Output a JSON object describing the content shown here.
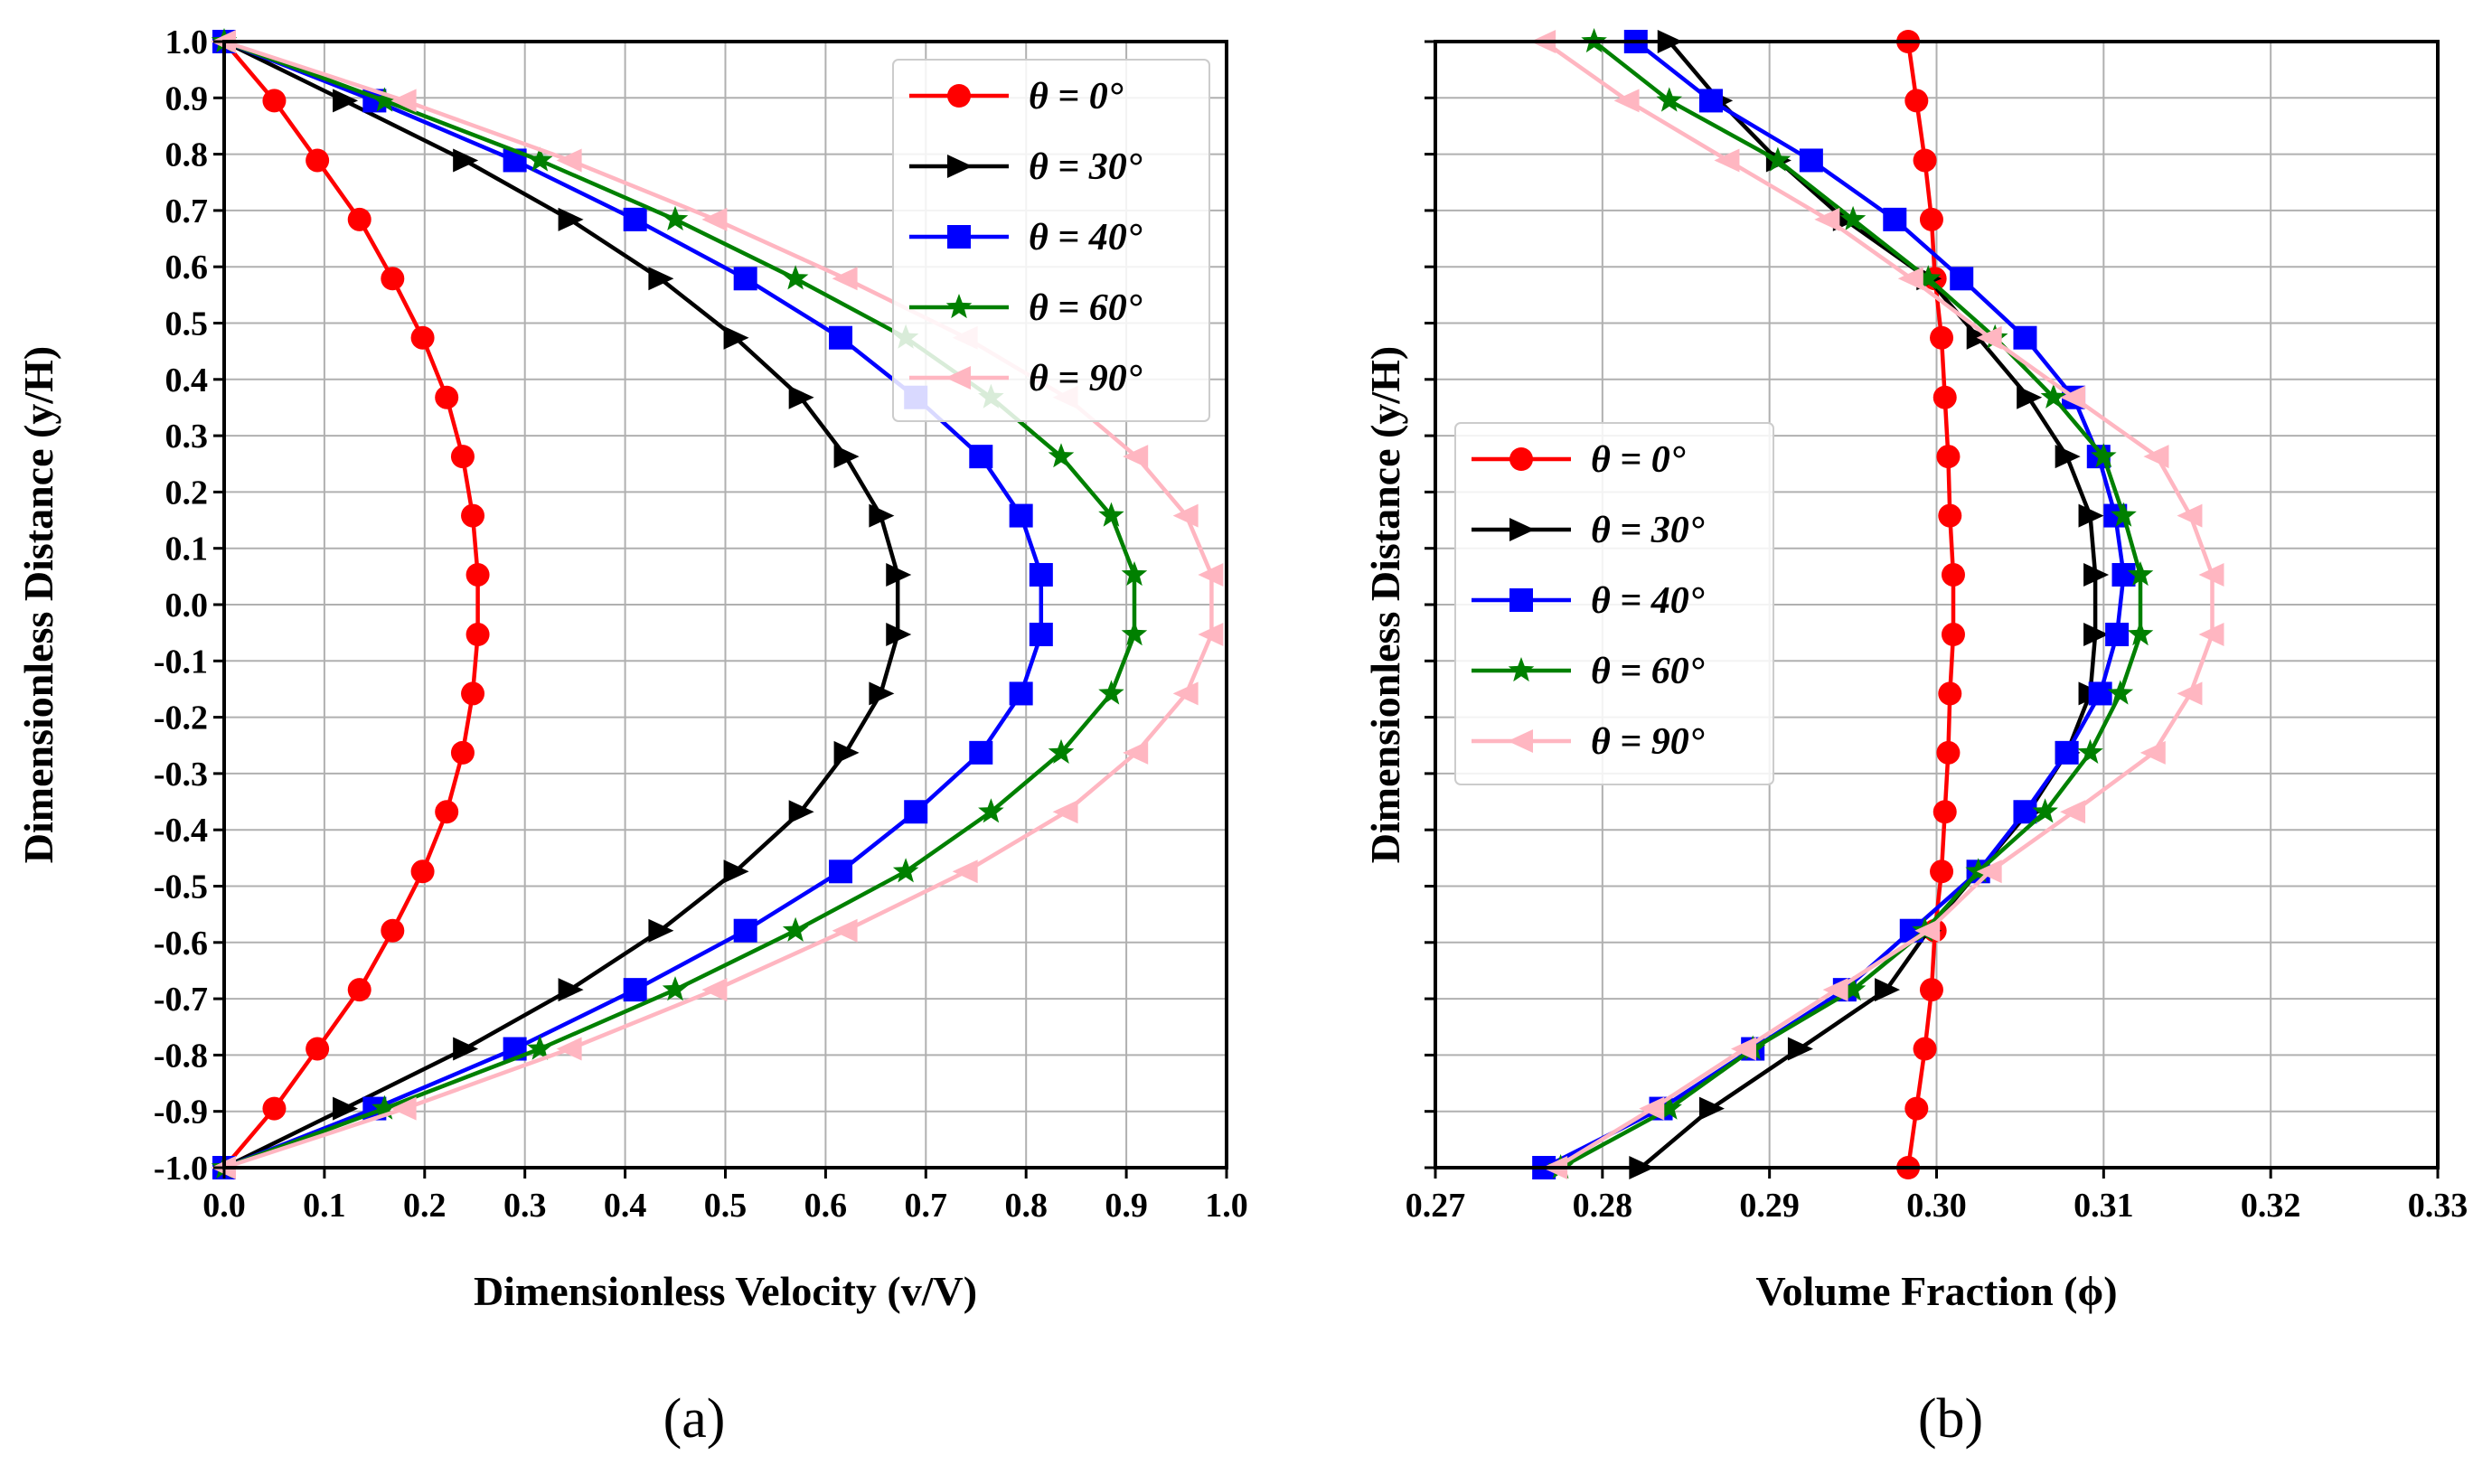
{
  "panels": [
    {
      "label": "(a)",
      "chart_data": {
        "type": "line",
        "title": "",
        "xlabel": "Dimensionless Velocity (v/V)",
        "ylabel": "Dimensionless Distance (y/H)",
        "xlim": [
          0.0,
          1.0
        ],
        "ylim": [
          -1.0,
          1.0
        ],
        "grid": true,
        "legend_position": "top-right",
        "x_ticks": [
          "0.0",
          "0.1",
          "0.2",
          "0.3",
          "0.4",
          "0.5",
          "0.6",
          "0.7",
          "0.8",
          "0.9",
          "1.0"
        ],
        "y_ticks": [
          "-1.0",
          "-0.9",
          "-0.8",
          "-0.7",
          "-0.6",
          "-0.5",
          "-0.4",
          "-0.3",
          "-0.2",
          "-0.1",
          "0.0",
          "0.1",
          "0.2",
          "0.3",
          "0.4",
          "0.5",
          "0.6",
          "0.7",
          "0.8",
          "0.9",
          "1.0"
        ],
        "y_tick_labels_visible": true,
        "y": [
          1.0,
          0.895,
          0.789,
          0.684,
          0.579,
          0.474,
          0.368,
          0.263,
          0.158,
          0.053,
          -0.053,
          -0.158,
          -0.263,
          -0.368,
          -0.474,
          -0.579,
          -0.684,
          -0.789,
          -0.895,
          -1.0
        ],
        "series": [
          {
            "name": "θ = 0°",
            "color": "#ff0000",
            "marker": "circle",
            "values": [
              0.0,
              0.05,
              0.093,
              0.135,
              0.168,
              0.198,
              0.222,
              0.238,
              0.248,
              0.253,
              0.253,
              0.248,
              0.238,
              0.222,
              0.198,
              0.168,
              0.135,
              0.093,
              0.05,
              0.0
            ]
          },
          {
            "name": "θ = 30°",
            "color": "#000000",
            "marker": "triangle-right",
            "values": [
              0.0,
              0.12,
              0.24,
              0.345,
              0.435,
              0.51,
              0.575,
              0.62,
              0.655,
              0.672,
              0.672,
              0.655,
              0.62,
              0.575,
              0.51,
              0.435,
              0.345,
              0.24,
              0.12,
              0.0
            ]
          },
          {
            "name": "θ = 40°",
            "color": "#0000ff",
            "marker": "square",
            "values": [
              0.0,
              0.15,
              0.29,
              0.41,
              0.52,
              0.615,
              0.69,
              0.755,
              0.795,
              0.815,
              0.815,
              0.795,
              0.755,
              0.69,
              0.615,
              0.52,
              0.41,
              0.29,
              0.15,
              0.0
            ]
          },
          {
            "name": "θ = 60°",
            "color": "#008000",
            "marker": "star",
            "values": [
              0.0,
              0.16,
              0.315,
              0.45,
              0.57,
              0.68,
              0.765,
              0.835,
              0.885,
              0.908,
              0.908,
              0.885,
              0.835,
              0.765,
              0.68,
              0.57,
              0.45,
              0.315,
              0.16,
              0.0
            ]
          },
          {
            "name": "θ = 90°",
            "color": "#ffb6c1",
            "marker": "triangle-left",
            "values": [
              0.0,
              0.18,
              0.345,
              0.49,
              0.62,
              0.74,
              0.84,
              0.91,
              0.96,
              0.985,
              0.985,
              0.96,
              0.91,
              0.84,
              0.74,
              0.62,
              0.49,
              0.345,
              0.18,
              0.0
            ]
          }
        ]
      }
    },
    {
      "label": "(b)",
      "chart_data": {
        "type": "line",
        "title": "",
        "xlabel": "Volume Fraction (ϕ)",
        "ylabel": "Dimensionless Distance (y/H)",
        "xlim": [
          0.27,
          0.33
        ],
        "ylim": [
          -1.0,
          1.0
        ],
        "grid": true,
        "legend_position": "center-left",
        "x_ticks": [
          "0.27",
          "0.28",
          "0.29",
          "0.30",
          "0.31",
          "0.32",
          "0.33"
        ],
        "y_ticks": [],
        "y_tick_labels_visible": false,
        "y": [
          1.0,
          0.895,
          0.789,
          0.684,
          0.579,
          0.474,
          0.368,
          0.263,
          0.158,
          0.053,
          -0.053,
          -0.158,
          -0.263,
          -0.368,
          -0.474,
          -0.579,
          -0.684,
          -0.789,
          -0.895,
          -1.0
        ],
        "series": [
          {
            "name": "θ = 0°",
            "color": "#ff0000",
            "marker": "circle",
            "values": [
              0.2983,
              0.2988,
              0.2993,
              0.2997,
              0.2999,
              0.3003,
              0.3005,
              0.3007,
              0.3008,
              0.301,
              0.301,
              0.3008,
              0.3007,
              0.3005,
              0.3003,
              0.2999,
              0.2997,
              0.2993,
              0.2988,
              0.2983
            ]
          },
          {
            "name": "θ = 30°",
            "color": "#000000",
            "marker": "triangle-right",
            "values": [
              0.284,
              0.287,
              0.2905,
              0.2945,
              0.2995,
              0.3025,
              0.3055,
              0.3078,
              0.3092,
              0.3095,
              0.3095,
              0.3092,
              0.3078,
              0.3055,
              0.3025,
              0.2995,
              0.297,
              0.2918,
              0.2865,
              0.2823
            ]
          },
          {
            "name": "θ = 40°",
            "color": "#0000ff",
            "marker": "square",
            "values": [
              0.282,
              0.2865,
              0.2925,
              0.2975,
              0.3015,
              0.3053,
              0.3082,
              0.3097,
              0.3107,
              0.3112,
              0.3108,
              0.3098,
              0.3078,
              0.3053,
              0.3025,
              0.2985,
              0.2945,
              0.289,
              0.2835,
              0.2765
            ]
          },
          {
            "name": "θ = 60°",
            "color": "#008000",
            "marker": "star",
            "values": [
              0.2795,
              0.284,
              0.2905,
              0.295,
              0.2995,
              0.3035,
              0.307,
              0.31,
              0.3112,
              0.3122,
              0.3122,
              0.311,
              0.3092,
              0.3065,
              0.3025,
              0.2993,
              0.295,
              0.289,
              0.284,
              0.2775
            ]
          },
          {
            "name": "θ = 90°",
            "color": "#ffb6c1",
            "marker": "triangle-left",
            "values": [
              0.2765,
              0.2815,
              0.2875,
              0.2935,
              0.2985,
              0.3032,
              0.3082,
              0.3132,
              0.3152,
              0.3165,
              0.3165,
              0.3152,
              0.313,
              0.3082,
              0.3032,
              0.2995,
              0.294,
              0.2885,
              0.283,
              0.2772
            ]
          }
        ]
      }
    }
  ]
}
